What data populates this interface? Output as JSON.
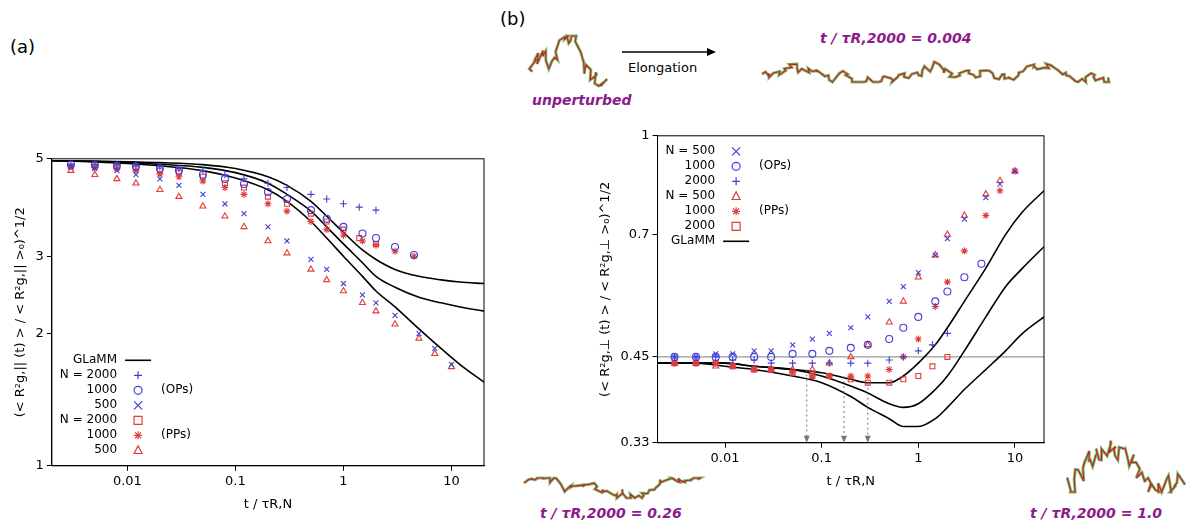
{
  "chart_data": [
    {
      "type": "scatter",
      "panel": "(a)",
      "log": true,
      "grid": false,
      "legend": "lower left",
      "x_label": "t / τR,N",
      "y_label": "(< R²g,|| (t) > / < R²g,|| >₀)^1/2",
      "xlim": [
        0.002,
        20
      ],
      "xticks": [
        0.01,
        0.1,
        1,
        10
      ],
      "ylim": [
        1,
        5
      ],
      "yticks": [
        1,
        2,
        3,
        5
      ],
      "series": [
        {
          "name": "GLaMM",
          "type": "line",
          "color": "#000000",
          "line_style": "solid",
          "x": [
            0.002,
            0.005,
            0.01,
            0.02,
            0.05,
            0.1,
            0.2,
            0.3,
            0.5,
            0.7,
            1,
            1.5,
            2,
            3,
            5,
            8,
            12,
            20
          ],
          "values": [
            4.95,
            4.94,
            4.92,
            4.9,
            4.85,
            4.75,
            4.55,
            4.35,
            4.0,
            3.7,
            3.4,
            3.1,
            2.95,
            2.8,
            2.7,
            2.65,
            2.62,
            2.6
          ]
        },
        {
          "name": "GLaMM",
          "type": "line",
          "color": "#000000",
          "line_style": "solid",
          "x": [
            0.002,
            0.005,
            0.01,
            0.02,
            0.05,
            0.1,
            0.2,
            0.3,
            0.5,
            0.7,
            1,
            1.5,
            2,
            3,
            5,
            8,
            12,
            20
          ],
          "values": [
            4.95,
            4.93,
            4.9,
            4.86,
            4.78,
            4.65,
            4.4,
            4.15,
            3.8,
            3.5,
            3.2,
            2.9,
            2.7,
            2.55,
            2.42,
            2.35,
            2.3,
            2.25
          ]
        },
        {
          "name": "GLaMM",
          "type": "line",
          "color": "#000000",
          "line_style": "solid",
          "x": [
            0.002,
            0.005,
            0.01,
            0.02,
            0.05,
            0.1,
            0.2,
            0.3,
            0.5,
            0.7,
            1,
            1.5,
            2,
            3,
            5,
            8,
            12,
            20
          ],
          "values": [
            4.95,
            4.92,
            4.88,
            4.82,
            4.7,
            4.52,
            4.25,
            4.0,
            3.6,
            3.3,
            3.0,
            2.7,
            2.5,
            2.3,
            2.05,
            1.85,
            1.7,
            1.55
          ]
        },
        {
          "name": "N = 2000",
          "group": "(OPs)",
          "type": "scatter",
          "color": "#4040d8",
          "marker": "plus",
          "x": [
            0.003,
            0.005,
            0.008,
            0.012,
            0.02,
            0.03,
            0.05,
            0.08,
            0.12,
            0.2,
            0.3,
            0.5,
            0.7,
            1.0,
            1.4,
            2.0
          ],
          "values": [
            4.85,
            4.85,
            4.84,
            4.82,
            4.8,
            4.75,
            4.7,
            4.6,
            4.5,
            4.4,
            4.3,
            4.15,
            4.05,
            3.95,
            3.88,
            3.82
          ]
        },
        {
          "name": "1000",
          "group": "(OPs)",
          "type": "scatter",
          "color": "#4040d8",
          "marker": "circle",
          "x": [
            0.003,
            0.005,
            0.008,
            0.012,
            0.02,
            0.03,
            0.05,
            0.08,
            0.12,
            0.2,
            0.3,
            0.5,
            0.7,
            1.0,
            1.5,
            2.0,
            3.0,
            4.5
          ],
          "values": [
            4.85,
            4.84,
            4.82,
            4.8,
            4.75,
            4.7,
            4.6,
            4.5,
            4.38,
            4.2,
            4.05,
            3.82,
            3.65,
            3.5,
            3.38,
            3.3,
            3.15,
            3.02
          ]
        },
        {
          "name": "500",
          "group": "(OPs)",
          "type": "scatter",
          "color": "#4040d8",
          "marker": "x",
          "x": [
            0.003,
            0.005,
            0.008,
            0.012,
            0.02,
            0.03,
            0.05,
            0.08,
            0.12,
            0.2,
            0.3,
            0.5,
            0.7,
            1.0,
            1.5,
            2.0,
            3.0,
            5.0,
            7.0,
            10.0
          ],
          "values": [
            4.8,
            4.75,
            4.7,
            4.6,
            4.5,
            4.35,
            4.15,
            3.95,
            3.75,
            3.5,
            3.25,
            2.95,
            2.8,
            2.6,
            2.45,
            2.35,
            2.2,
            2.0,
            1.85,
            1.7
          ]
        },
        {
          "name": "N = 2000",
          "group": "(PPs)",
          "type": "scatter",
          "color": "#e03c3c",
          "marker": "square",
          "x": [
            0.003,
            0.005,
            0.008,
            0.012,
            0.02,
            0.03,
            0.05,
            0.08,
            0.12,
            0.2,
            0.3,
            0.5,
            0.7,
            1.0,
            1.4,
            2.0
          ],
          "values": [
            4.8,
            4.8,
            4.78,
            4.75,
            4.7,
            4.65,
            4.55,
            4.4,
            4.3,
            4.1,
            3.95,
            3.75,
            3.6,
            3.45,
            3.3,
            3.2
          ]
        },
        {
          "name": "1000",
          "group": "(PPs)",
          "type": "scatter",
          "color": "#e03c3c",
          "marker": "star",
          "x": [
            0.003,
            0.005,
            0.008,
            0.012,
            0.02,
            0.03,
            0.05,
            0.08,
            0.12,
            0.2,
            0.3,
            0.5,
            0.7,
            1.0,
            1.5,
            2.0,
            3.0,
            4.5
          ],
          "values": [
            4.8,
            4.78,
            4.75,
            4.7,
            4.62,
            4.55,
            4.45,
            4.3,
            4.15,
            3.95,
            3.8,
            3.6,
            3.45,
            3.35,
            3.25,
            3.18,
            3.08,
            3.0
          ]
        },
        {
          "name": "500",
          "group": "(PPs)",
          "type": "scatter",
          "color": "#e03c3c",
          "marker": "triangle",
          "x": [
            0.003,
            0.005,
            0.008,
            0.012,
            0.02,
            0.03,
            0.05,
            0.08,
            0.12,
            0.2,
            0.3,
            0.5,
            0.7,
            1.0,
            1.5,
            2.0,
            3.0,
            5.0,
            7.0,
            10.0
          ],
          "values": [
            4.7,
            4.6,
            4.5,
            4.4,
            4.25,
            4.1,
            3.9,
            3.7,
            3.5,
            3.25,
            3.05,
            2.8,
            2.65,
            2.5,
            2.35,
            2.25,
            2.1,
            1.95,
            1.8,
            1.68
          ]
        }
      ]
    },
    {
      "type": "scatter",
      "panel": "(b)",
      "log": true,
      "grid": false,
      "legend": "upper left",
      "x_label": "t / τR,N",
      "y_label": "(< R²g,⊥ (t) > / < R²g,⊥ >₀)^1/2",
      "xlim": [
        0.002,
        20
      ],
      "xticks": [
        0.01,
        0.1,
        1,
        10
      ],
      "ylim": [
        0.33,
        1
      ],
      "yticks": [
        0.33,
        0.45,
        0.7,
        1
      ],
      "reference_line": 0.45,
      "arrows": [
        {
          "x": 0.07,
          "y": 0.43
        },
        {
          "x": 0.17,
          "y": 0.42
        },
        {
          "x": 0.3,
          "y": 0.41
        }
      ],
      "arrow_label": "Elongation",
      "snapshots": [
        "unperturbed",
        "t / τR,2000 = 0.004",
        "t / τR,2000 = 0.26",
        "t / τR,2000 = 1.0"
      ],
      "series": [
        {
          "name": "N = 500",
          "group": "(OPs)",
          "type": "scatter",
          "color": "#4040d8",
          "marker": "x",
          "x": [
            0.003,
            0.005,
            0.008,
            0.012,
            0.02,
            0.03,
            0.05,
            0.08,
            0.12,
            0.2,
            0.3,
            0.5,
            0.7,
            1.0,
            1.5,
            2.0,
            3.0,
            5.0,
            7.0,
            10.0
          ],
          "values": [
            0.45,
            0.45,
            0.455,
            0.455,
            0.46,
            0.46,
            0.47,
            0.48,
            0.49,
            0.5,
            0.52,
            0.55,
            0.58,
            0.61,
            0.65,
            0.69,
            0.74,
            0.8,
            0.84,
            0.88
          ]
        },
        {
          "name": "1000",
          "group": "(OPs)",
          "type": "scatter",
          "color": "#4040d8",
          "marker": "circle",
          "x": [
            0.003,
            0.005,
            0.008,
            0.012,
            0.02,
            0.03,
            0.05,
            0.08,
            0.12,
            0.2,
            0.3,
            0.5,
            0.7,
            1.0,
            1.5,
            2.0,
            3.0,
            4.5
          ],
          "values": [
            0.45,
            0.45,
            0.45,
            0.45,
            0.45,
            0.45,
            0.455,
            0.455,
            0.46,
            0.465,
            0.47,
            0.48,
            0.5,
            0.52,
            0.55,
            0.57,
            0.6,
            0.63
          ]
        },
        {
          "name": "2000",
          "group": "(OPs)",
          "type": "scatter",
          "color": "#4040d8",
          "marker": "plus",
          "x": [
            0.003,
            0.005,
            0.008,
            0.012,
            0.02,
            0.03,
            0.05,
            0.08,
            0.12,
            0.2,
            0.3,
            0.5,
            0.7,
            1.0,
            1.4,
            2.0
          ],
          "values": [
            0.45,
            0.45,
            0.45,
            0.445,
            0.445,
            0.44,
            0.44,
            0.44,
            0.44,
            0.44,
            0.44,
            0.445,
            0.45,
            0.46,
            0.47,
            0.49
          ]
        },
        {
          "name": "N = 500",
          "group": "(PPs)",
          "type": "scatter",
          "color": "#e03c3c",
          "marker": "triangle",
          "x": [
            0.003,
            0.005,
            0.008,
            0.012,
            0.02,
            0.03,
            0.05,
            0.08,
            0.12,
            0.2,
            0.3,
            0.5,
            0.7,
            1.0,
            1.5,
            2.0,
            3.0,
            5.0,
            7.0,
            10.0
          ],
          "values": [
            0.44,
            0.44,
            0.435,
            0.435,
            0.43,
            0.43,
            0.43,
            0.43,
            0.44,
            0.45,
            0.47,
            0.51,
            0.55,
            0.6,
            0.65,
            0.7,
            0.75,
            0.81,
            0.85,
            0.88
          ]
        },
        {
          "name": "1000",
          "group": "(PPs)",
          "type": "scatter",
          "color": "#e03c3c",
          "marker": "star",
          "x": [
            0.003,
            0.005,
            0.008,
            0.012,
            0.02,
            0.03,
            0.05,
            0.08,
            0.12,
            0.2,
            0.3,
            0.5,
            0.7,
            1.0,
            1.5,
            2.0,
            3.0,
            5.0,
            7.0,
            10.0
          ],
          "values": [
            0.44,
            0.44,
            0.44,
            0.435,
            0.43,
            0.43,
            0.425,
            0.42,
            0.42,
            0.42,
            0.42,
            0.43,
            0.45,
            0.48,
            0.54,
            0.59,
            0.66,
            0.75,
            0.82,
            0.88
          ]
        },
        {
          "name": "2000",
          "group": "(PPs)",
          "type": "scatter",
          "color": "#e03c3c",
          "marker": "square",
          "x": [
            0.003,
            0.005,
            0.008,
            0.012,
            0.02,
            0.03,
            0.05,
            0.08,
            0.12,
            0.2,
            0.3,
            0.5,
            0.7,
            1.0,
            1.4,
            2.0
          ],
          "values": [
            0.44,
            0.44,
            0.44,
            0.435,
            0.43,
            0.43,
            0.425,
            0.42,
            0.42,
            0.415,
            0.41,
            0.41,
            0.415,
            0.42,
            0.435,
            0.45
          ]
        },
        {
          "name": "GLaMM",
          "type": "line",
          "color": "#000000",
          "line_style": "solid",
          "x": [
            0.002,
            0.005,
            0.01,
            0.02,
            0.05,
            0.1,
            0.2,
            0.3,
            0.5,
            0.7,
            1,
            1.5,
            2,
            3,
            5,
            8,
            12,
            20
          ],
          "values": [
            0.44,
            0.44,
            0.44,
            0.435,
            0.43,
            0.425,
            0.415,
            0.41,
            0.41,
            0.42,
            0.44,
            0.47,
            0.5,
            0.55,
            0.62,
            0.7,
            0.76,
            0.82
          ]
        },
        {
          "name": "GLaMM",
          "type": "line",
          "color": "#000000",
          "line_style": "solid",
          "x": [
            0.002,
            0.005,
            0.01,
            0.02,
            0.05,
            0.1,
            0.2,
            0.3,
            0.5,
            0.7,
            1,
            1.5,
            2,
            3,
            5,
            8,
            12,
            20
          ],
          "values": [
            0.44,
            0.44,
            0.44,
            0.435,
            0.43,
            0.42,
            0.405,
            0.395,
            0.38,
            0.375,
            0.38,
            0.4,
            0.42,
            0.46,
            0.52,
            0.58,
            0.62,
            0.67
          ]
        },
        {
          "name": "GLaMM",
          "type": "line",
          "color": "#000000",
          "line_style": "solid",
          "x": [
            0.002,
            0.005,
            0.01,
            0.02,
            0.05,
            0.1,
            0.2,
            0.3,
            0.5,
            0.7,
            1,
            1.5,
            2,
            3,
            5,
            8,
            12,
            20
          ],
          "values": [
            0.44,
            0.44,
            0.435,
            0.43,
            0.42,
            0.41,
            0.39,
            0.375,
            0.36,
            0.35,
            0.35,
            0.36,
            0.375,
            0.4,
            0.43,
            0.46,
            0.49,
            0.52
          ]
        }
      ]
    }
  ]
}
